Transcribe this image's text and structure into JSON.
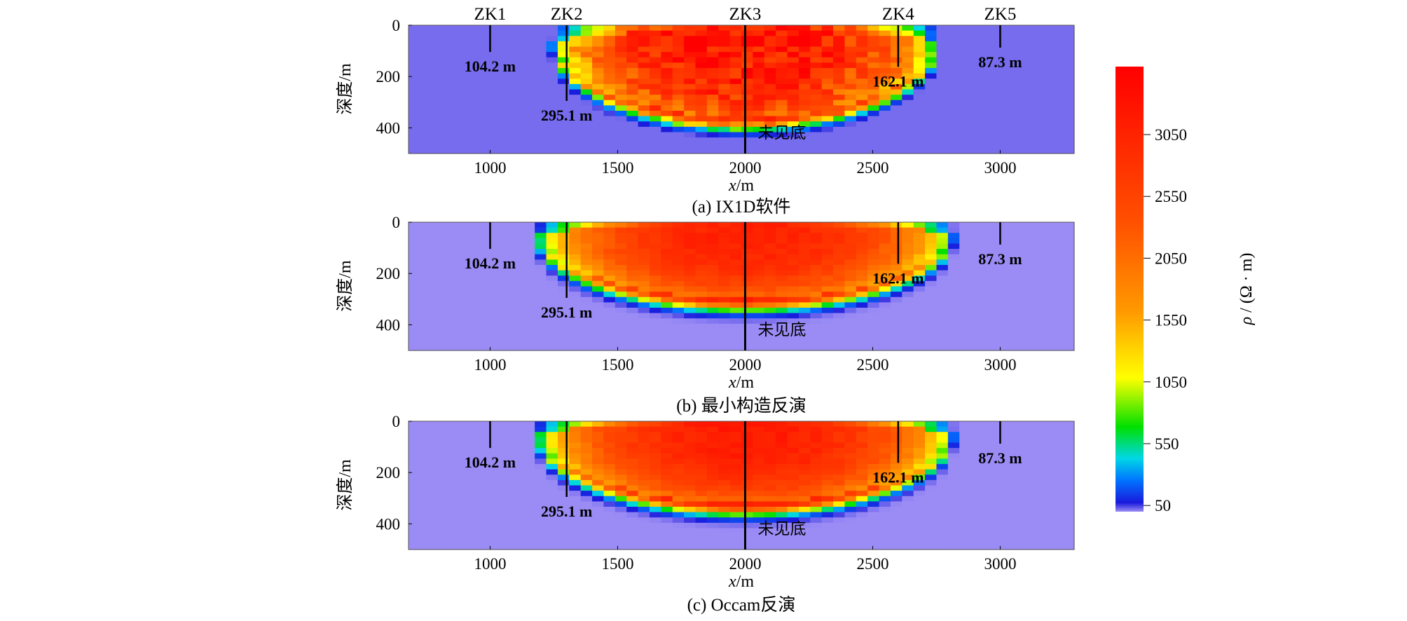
{
  "chart_data": {
    "type": "heatmap",
    "x_unit_label": {
      "var": "x",
      "unit": "/m"
    },
    "y_label": "深度/m",
    "x_ticks": [
      1000,
      1500,
      2000,
      2500,
      3000
    ],
    "y_ticks": [
      0,
      200,
      400
    ],
    "xlim": [
      680,
      3290
    ],
    "ylim": [
      0,
      500
    ],
    "wells": [
      {
        "name": "ZK1",
        "x": 1000,
        "depth": 104.2,
        "depth_label": "104.2 m"
      },
      {
        "name": "ZK2",
        "x": 1300,
        "depth": 295.1,
        "depth_label": "295.1 m"
      },
      {
        "name": "ZK3",
        "x": 2000,
        "depth": 500,
        "depth_label": "未见底"
      },
      {
        "name": "ZK4",
        "x": 2600,
        "depth": 162.1,
        "depth_label": "162.1 m"
      },
      {
        "name": "ZK5",
        "x": 3000,
        "depth": 87.3,
        "depth_label": "87.3 m"
      }
    ],
    "panels": [
      {
        "caption": "(a) IX1D软件",
        "show_well_names": true,
        "background_resistivity": 20,
        "model": {
          "cx": 2000,
          "half_width": 760,
          "top_depth": 60,
          "bottom_depth": 360,
          "peak": 3300,
          "noise": 0.22
        }
      },
      {
        "caption": "(b) 最小构造反演",
        "show_well_names": false,
        "background_resistivity": 0,
        "model": {
          "cx": 2000,
          "half_width": 820,
          "top_depth": 40,
          "bottom_depth": 300,
          "peak": 3100,
          "noise": 0.05
        }
      },
      {
        "caption": "(c) Occam反演",
        "show_well_names": false,
        "background_resistivity": 0,
        "model": {
          "cx": 2000,
          "half_width": 820,
          "top_depth": 40,
          "bottom_depth": 320,
          "peak": 3200,
          "noise": 0.05
        }
      }
    ],
    "colorbar": {
      "label_symbol": "ρ",
      "label_unit": "/ (Ω · m)",
      "ticks": [
        50,
        550,
        1050,
        1550,
        2050,
        2550,
        3050
      ],
      "min": 0,
      "max": 3600,
      "colors": [
        "#9b8cf5",
        "#1a1adc",
        "#0073ff",
        "#00d7e6",
        "#00e000",
        "#ffff00",
        "#ff9900",
        "#ff5000",
        "#ff0000"
      ]
    }
  }
}
